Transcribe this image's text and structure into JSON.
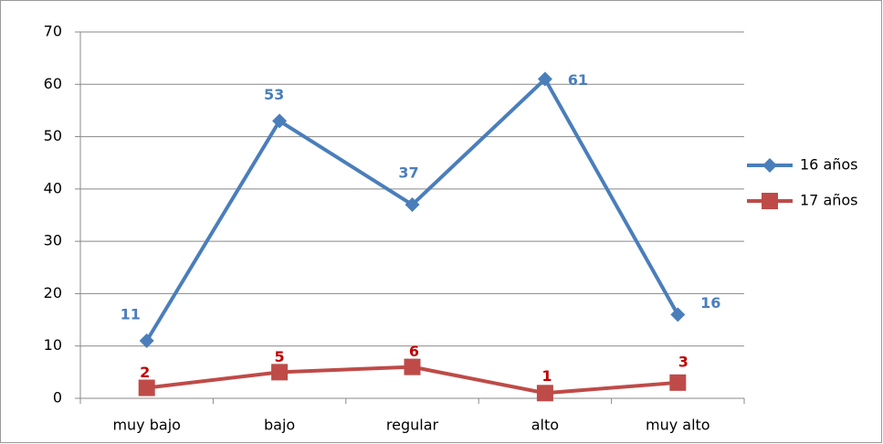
{
  "chart_data": {
    "type": "line",
    "categories": [
      "muy bajo",
      "bajo",
      "regular",
      "alto",
      "muy alto"
    ],
    "series": [
      {
        "name": "16 años",
        "color": "#4a7ebb",
        "values": [
          11,
          53,
          37,
          61,
          16
        ]
      },
      {
        "name": "17 años",
        "color": "#be4b48",
        "values": [
          2,
          5,
          6,
          1,
          3
        ]
      }
    ],
    "ylim": [
      0,
      70
    ],
    "yticks": [
      0,
      10,
      20,
      30,
      40,
      50,
      60,
      70
    ],
    "grid": true,
    "legend": "right"
  }
}
